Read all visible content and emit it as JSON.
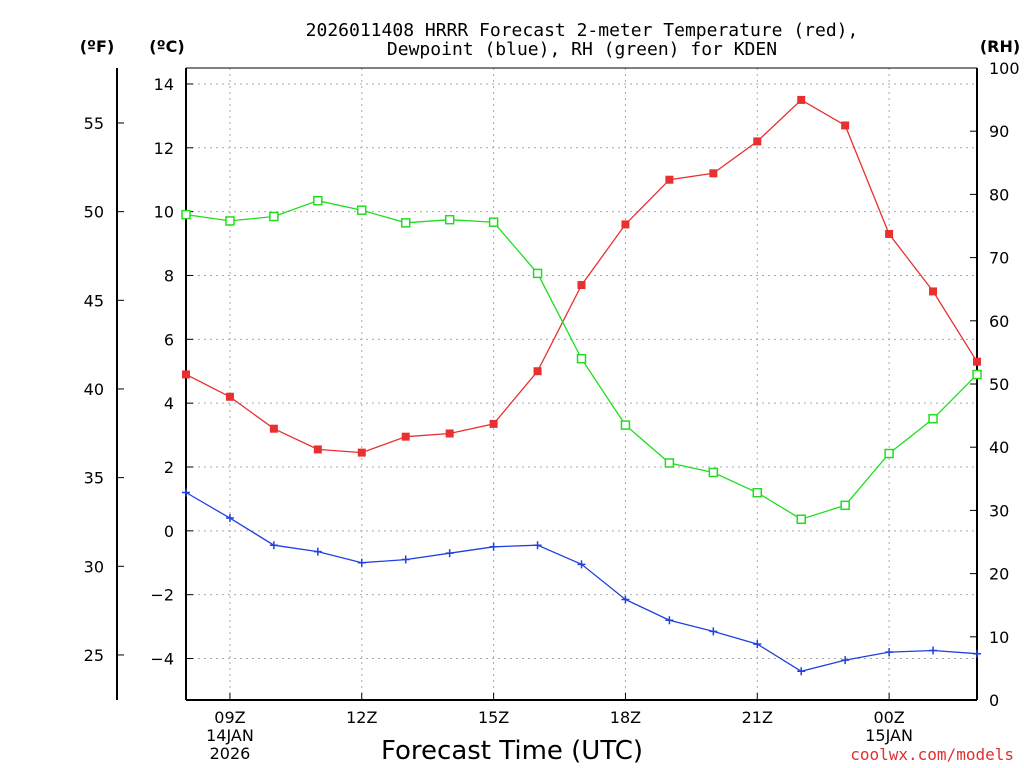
{
  "chart_data": {
    "type": "line",
    "title_line1": "2026011408 HRRR Forecast 2-meter Temperature (red),",
    "title_line2": "Dewpoint (blue), RH (green) for KDEN",
    "xlabel": "Forecast Time (UTC)",
    "credit": "coolwx.com/models",
    "units": {
      "fahrenheit": "(ºF)",
      "celsius": "(ºC)",
      "rh": "(RH)"
    },
    "x_range": [
      8,
      26
    ],
    "x_ticks": [
      {
        "x": 9,
        "label": "09Z",
        "sub1": "14JAN",
        "sub2": "2026"
      },
      {
        "x": 12,
        "label": "12Z",
        "sub1": "",
        "sub2": ""
      },
      {
        "x": 15,
        "label": "15Z",
        "sub1": "",
        "sub2": ""
      },
      {
        "x": 18,
        "label": "18Z",
        "sub1": "",
        "sub2": ""
      },
      {
        "x": 21,
        "label": "21Z",
        "sub1": "",
        "sub2": ""
      },
      {
        "x": 24,
        "label": "00Z",
        "sub1": "15JAN",
        "sub2": ""
      }
    ],
    "celsius_axis": {
      "range": [
        -5.3,
        14.5
      ],
      "ticks": [
        14,
        12,
        10,
        8,
        6,
        4,
        2,
        0,
        -2,
        -4
      ]
    },
    "fahrenheit_axis": {
      "range": [
        22.46,
        58.1
      ],
      "ticks": [
        55,
        50,
        45,
        40,
        35,
        30,
        25
      ]
    },
    "rh_axis": {
      "range": [
        0,
        100
      ],
      "ticks": [
        100,
        90,
        80,
        70,
        60,
        50,
        40,
        30,
        20,
        10,
        0
      ]
    },
    "x": [
      8,
      9,
      10,
      11,
      12,
      13,
      14,
      15,
      16,
      17,
      18,
      19,
      20,
      21,
      22,
      23,
      24,
      25,
      26
    ],
    "series": [
      {
        "name": "Temperature",
        "color": "#e83030",
        "marker": "filled-square",
        "axis": "celsius",
        "values": [
          4.9,
          4.2,
          3.2,
          2.55,
          2.45,
          2.95,
          3.05,
          3.35,
          5.0,
          7.7,
          9.6,
          11.0,
          11.2,
          12.2,
          13.5,
          12.7,
          9.3,
          7.5,
          5.3
        ]
      },
      {
        "name": "Dewpoint",
        "color": "#2040e0",
        "marker": "plus",
        "axis": "celsius",
        "values": [
          1.2,
          0.4,
          -0.45,
          -0.65,
          -1.0,
          -0.9,
          -0.7,
          -0.5,
          -0.45,
          -1.05,
          -2.15,
          -2.8,
          -3.15,
          -3.55,
          -4.4,
          -4.05,
          -3.8,
          -3.75,
          -3.85
        ]
      },
      {
        "name": "Relative Humidity",
        "color": "#20dd20",
        "marker": "open-square",
        "axis": "rh",
        "values": [
          76.8,
          75.8,
          76.5,
          79.0,
          77.5,
          75.5,
          76.0,
          75.6,
          67.5,
          54.0,
          43.5,
          37.5,
          36.0,
          32.8,
          28.6,
          30.8,
          39.0,
          44.5,
          51.5
        ]
      }
    ]
  }
}
